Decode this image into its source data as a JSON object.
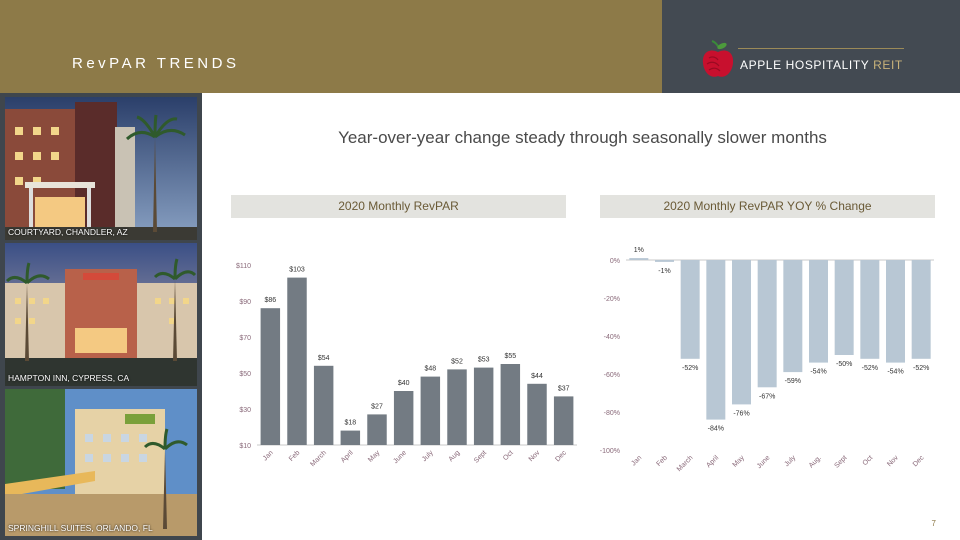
{
  "header": {
    "title": "RevPAR TRENDS",
    "logo_text": "APPLE HOSPITALITY",
    "logo_reit": "REIT"
  },
  "headline": "Year-over-year change steady through seasonally slower months",
  "photos": [
    {
      "caption": "COURTYARD, CHANDLER, AZ"
    },
    {
      "caption": "HAMPTON INN, CYPRESS, CA"
    },
    {
      "caption": "SPRINGHILL SUITES, ORLANDO, FL"
    }
  ],
  "page_number": "7",
  "colors": {
    "gold": "#8d7a48",
    "dark": "#434a52",
    "bar_dark": "#737b83",
    "bar_light": "#b8c7d4"
  },
  "chart_data": [
    {
      "type": "bar",
      "title": "2020 Monthly RevPAR",
      "categories": [
        "Jan",
        "Feb",
        "March",
        "April",
        "May",
        "June",
        "July",
        "Aug",
        "Sept",
        "Oct",
        "Nov",
        "Dec"
      ],
      "values": [
        86,
        103,
        54,
        18,
        27,
        40,
        48,
        52,
        53,
        55,
        44,
        37
      ],
      "data_labels": [
        "$86",
        "$103",
        "$54",
        "$18",
        "$27",
        "$40",
        "$48",
        "$52",
        "$53",
        "$55",
        "$44",
        "$37"
      ],
      "ylim": [
        10,
        110
      ],
      "yticks": [
        10,
        30,
        50,
        70,
        90,
        110
      ],
      "ytick_labels": [
        "$10",
        "$30",
        "$50",
        "$70",
        "$90",
        "$110"
      ],
      "grid": false
    },
    {
      "type": "bar",
      "title": "2020 Monthly RevPAR YOY % Change",
      "categories": [
        "Jan",
        "Feb",
        "March",
        "April",
        "May",
        "June",
        "July",
        "Aug.",
        "Sept",
        "Oct",
        "Nov",
        "Dec"
      ],
      "values": [
        1,
        -1,
        -52,
        -84,
        -76,
        -67,
        -59,
        -54,
        -50,
        -52,
        -54,
        -52
      ],
      "data_labels": [
        "1%",
        "-1%",
        "-52%",
        "-84%",
        "-76%",
        "-67%",
        "-59%",
        "-54%",
        "-50%",
        "-52%",
        "-54%",
        "-52%"
      ],
      "ylim": [
        -100,
        0
      ],
      "yticks": [
        0,
        -20,
        -40,
        -60,
        -80,
        -100
      ],
      "ytick_labels": [
        "0%",
        "-20%",
        "-40%",
        "-60%",
        "-80%",
        "-100%"
      ],
      "grid": false
    }
  ]
}
